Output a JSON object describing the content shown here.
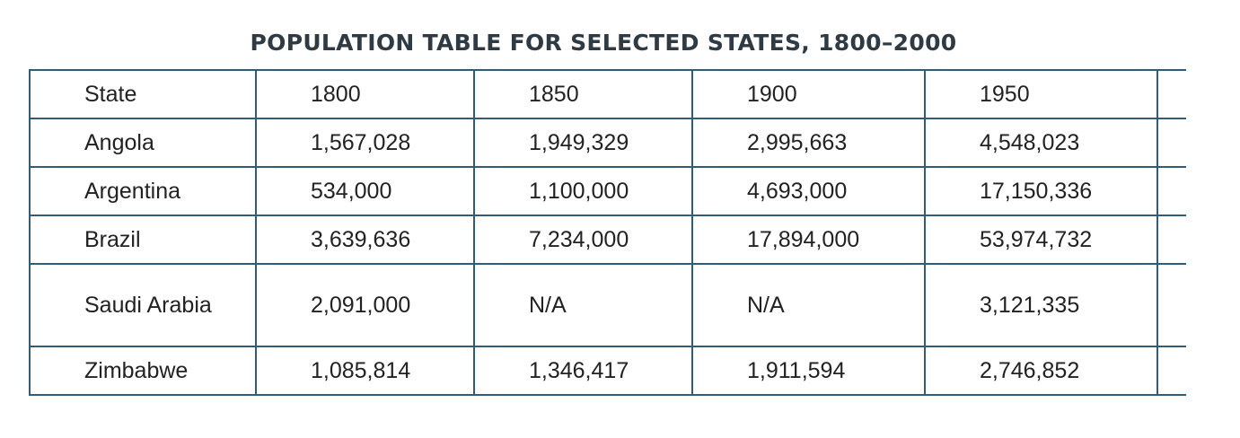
{
  "chart_data": {
    "type": "table",
    "title": "POPULATION TABLE FOR SELECTED STATES, 1800–2000",
    "columns": [
      "State",
      "1800",
      "1850",
      "1900",
      "1950",
      ""
    ],
    "rows": [
      [
        "Angola",
        "1,567,028",
        "1,949,329",
        "2,995,663",
        "4,548,023",
        ""
      ],
      [
        "Argentina",
        "534,000",
        "1,100,000",
        "4,693,000",
        "17,150,336",
        ""
      ],
      [
        "Brazil",
        "3,639,636",
        "7,234,000",
        "17,894,000",
        "53,974,732",
        ""
      ],
      [
        "Saudi Arabia",
        "2,091,000",
        "N/A",
        "N/A",
        "3,121,335",
        ""
      ],
      [
        "Zimbabwe",
        "1,085,814",
        "1,346,417",
        "1,911,594",
        "2,746,852",
        ""
      ]
    ]
  },
  "colors": {
    "border": "#2f5d78",
    "title": "#2e3b45",
    "text": "#222222"
  }
}
